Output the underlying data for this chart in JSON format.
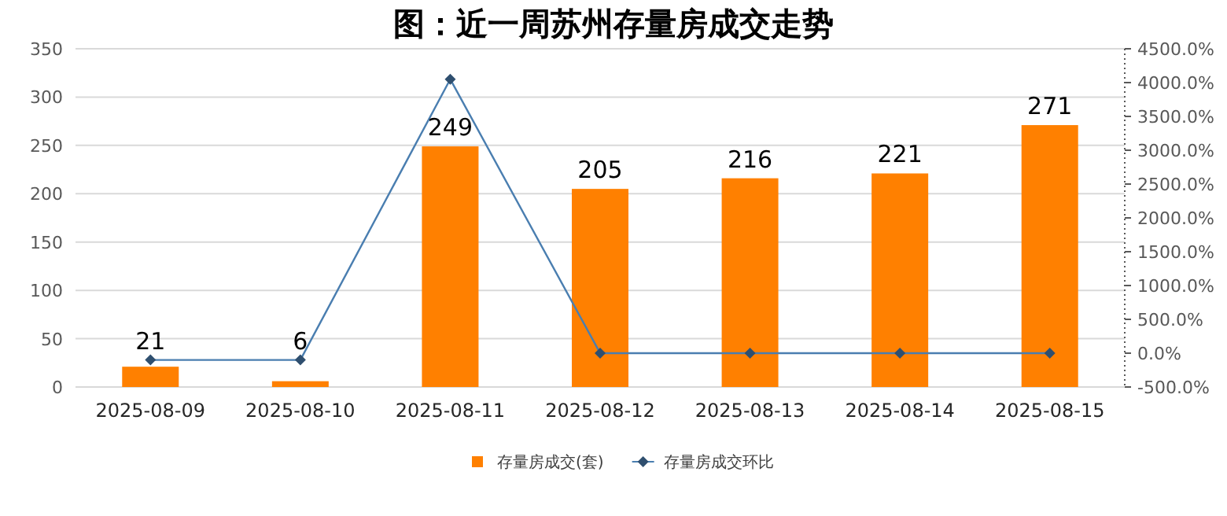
{
  "chart_data": {
    "type": "bar",
    "title": "图：近一周苏州存量房成交走势",
    "categories": [
      "2025-08-09",
      "2025-08-10",
      "2025-08-11",
      "2025-08-12",
      "2025-08-13",
      "2025-08-14",
      "2025-08-15"
    ],
    "series": [
      {
        "name": "存量房成交(套)",
        "color": "#ff8000",
        "values": [
          21,
          6,
          249,
          205,
          216,
          221,
          271
        ],
        "value_labels": [
          "21",
          "6",
          "249",
          "205",
          "216",
          "221",
          "271"
        ]
      },
      {
        "name": "存量房成交环比",
        "type": "line",
        "axis": "y2",
        "color": "#4a7eb0",
        "marker": "diamond",
        "values": [
          -100,
          -100,
          4050,
          0,
          0,
          0,
          0
        ]
      }
    ],
    "ylim": [
      0,
      350
    ],
    "yticks": [
      0,
      50,
      100,
      150,
      200,
      250,
      300,
      350
    ],
    "y2lim": [
      -500,
      4500
    ],
    "y2ticks": [
      {
        "value": -500,
        "label": "-500.0%"
      },
      {
        "value": 0,
        "label": "0.0%"
      },
      {
        "value": 500,
        "label": "500.0%"
      },
      {
        "value": 1000,
        "label": "1000.0%"
      },
      {
        "value": 1500,
        "label": "1500.0%"
      },
      {
        "value": 2000,
        "label": "2000.0%"
      },
      {
        "value": 2500,
        "label": "2500.0%"
      },
      {
        "value": 3000,
        "label": "3000.0%"
      },
      {
        "value": 3500,
        "label": "3500.0%"
      },
      {
        "value": 4000,
        "label": "4000.0%"
      },
      {
        "value": 4500,
        "label": "4500.0%"
      }
    ],
    "grid": "y",
    "legend": "bottom"
  }
}
